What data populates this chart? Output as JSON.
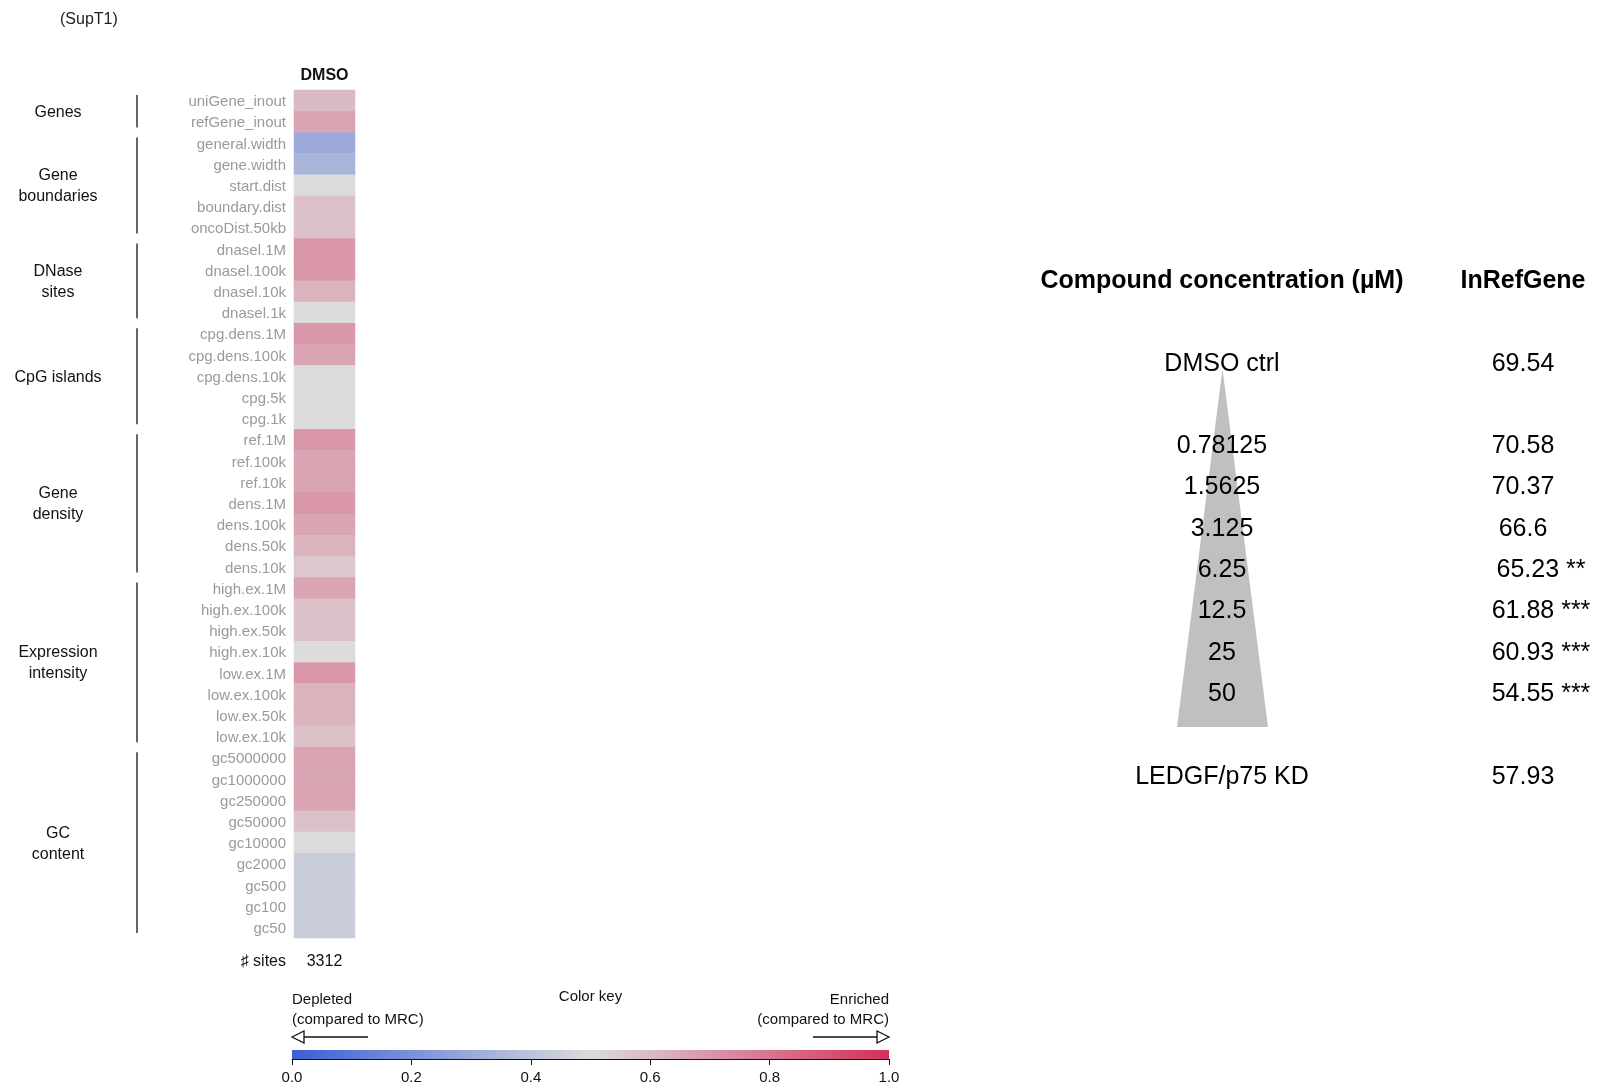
{
  "chart_data": [
    {
      "type": "heatmap",
      "title": "(SupT1)",
      "clabel": "Color key",
      "categories": [
        "DMSO"
      ],
      "y_categories": [
        "uniGene_inout",
        "refGene_inout",
        "general.width",
        "gene.width",
        "start.dist",
        "boundary.dist",
        "oncoDist.50kb",
        "dnasel.1M",
        "dnasel.100k",
        "dnasel.10k",
        "dnasel.1k",
        "cpg.dens.1M",
        "cpg.dens.100k",
        "cpg.dens.10k",
        "cpg.5k",
        "cpg.1k",
        "ref.1M",
        "ref.100k",
        "ref.10k",
        "dens.1M",
        "dens.100k",
        "dens.50k",
        "dens.10k",
        "high.ex.1M",
        "high.ex.100k",
        "high.ex.50k",
        "high.ex.10k",
        "low.ex.1M",
        "low.ex.100k",
        "low.ex.50k",
        "low.ex.10k",
        "gc5000000",
        "gc1000000",
        "gc250000",
        "gc50000",
        "gc10000",
        "gc2000",
        "gc500",
        "gc100",
        "gc50"
      ],
      "cells": [
        [
          0.6
        ],
        [
          0.66
        ],
        [
          0.3
        ],
        [
          0.34
        ],
        [
          0.5
        ],
        [
          0.58
        ],
        [
          0.58
        ],
        [
          0.7
        ],
        [
          0.7
        ],
        [
          0.62
        ],
        [
          0.5
        ],
        [
          0.7
        ],
        [
          0.66
        ],
        [
          0.5
        ],
        [
          0.5
        ],
        [
          0.5
        ],
        [
          0.7
        ],
        [
          0.66
        ],
        [
          0.66
        ],
        [
          0.7
        ],
        [
          0.66
        ],
        [
          0.62
        ],
        [
          0.56
        ],
        [
          0.66
        ],
        [
          0.58
        ],
        [
          0.58
        ],
        [
          0.5
        ],
        [
          0.7
        ],
        [
          0.62
        ],
        [
          0.62
        ],
        [
          0.58
        ],
        [
          0.66
        ],
        [
          0.66
        ],
        [
          0.66
        ],
        [
          0.58
        ],
        [
          0.5
        ],
        [
          0.44
        ],
        [
          0.44
        ],
        [
          0.44
        ],
        [
          0.44
        ]
      ],
      "clim": [
        0,
        1
      ],
      "cticks": [
        {
          "value": 0,
          "label": "0.0"
        },
        {
          "value": 0.2,
          "label": "0.2"
        },
        {
          "value": 0.4,
          "label": "0.4"
        },
        {
          "value": 0.6,
          "label": "0.6"
        },
        {
          "value": 0.8,
          "label": "0.8"
        },
        {
          "value": 1,
          "label": "1.0"
        }
      ],
      "annotations": [
        "Genes",
        "Gene\nboundaries",
        "DNase\nsites",
        "CpG islands",
        "Gene\ndensity",
        "Expression\nintensity",
        "GC\ncontent",
        "♯ sites",
        "3312",
        "Depleted\n(compared to MRC)",
        "Enriched\n(compared to MRC)"
      ]
    },
    {
      "type": "other",
      "xlabel": "Compound concentration (µM)",
      "ylabel": "InRefGene",
      "categories": [
        "DMSO ctrl",
        "0.78125",
        "1.5625",
        "3.125",
        "6.25",
        "12.5",
        "25",
        "50",
        "LEDGF/p75 KD"
      ],
      "value_labels": [
        "69.54",
        "70.58",
        "70.37",
        "66.6",
        "65.23 **",
        "61.88 ***",
        "60.93 ***",
        "54.55 ***",
        "57.93"
      ]
    }
  ]
}
